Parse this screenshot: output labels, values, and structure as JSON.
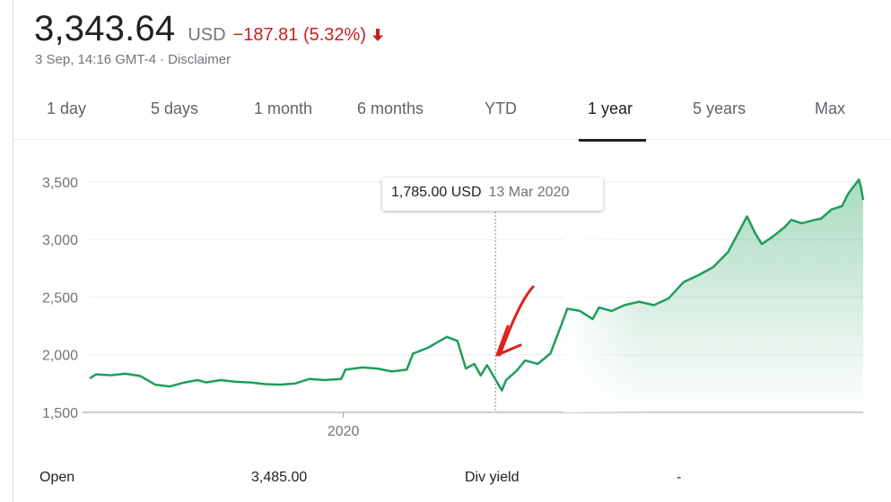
{
  "quote": {
    "price": "3,343.64",
    "currency": "USD",
    "change": "−187.81 (5.32%)",
    "timestamp": "3 Sep, 14:16 GMT-4",
    "separator": "·",
    "disclaimer": "Disclaimer",
    "change_color": "#c5221f"
  },
  "tabs": [
    {
      "label": "1 day",
      "active": false
    },
    {
      "label": "5 days",
      "active": false
    },
    {
      "label": "1 month",
      "active": false
    },
    {
      "label": "6 months",
      "active": false
    },
    {
      "label": "YTD",
      "active": false
    },
    {
      "label": "1 year",
      "active": true
    },
    {
      "label": "5 years",
      "active": false
    },
    {
      "label": "Max",
      "active": false
    }
  ],
  "tooltip": {
    "value": "1,785.00 USD",
    "date": "13 Mar 2020"
  },
  "stats": {
    "open_label": "Open",
    "open_value": "3,485.00",
    "div_yield_label": "Div yield",
    "div_yield_value": "-"
  },
  "chart_data": {
    "type": "area",
    "title": "",
    "xlabel": "",
    "ylabel": "",
    "line_color": "#1e9e5a",
    "annotation_color": "#e0201a",
    "ylim": [
      1500,
      3600
    ],
    "yticks": [
      {
        "label": "3,500",
        "value": 3500
      },
      {
        "label": "3,000",
        "value": 3000
      },
      {
        "label": "2,500",
        "value": 2500
      },
      {
        "label": "2,000",
        "value": 2000
      },
      {
        "label": "1,500",
        "value": 1500
      }
    ],
    "xlim": [
      "2019-09-03",
      "2020-09-03"
    ],
    "xticks": [
      {
        "label": "2020",
        "date": "2020-01-01"
      }
    ],
    "grid": true,
    "hover_date": "2020-03-13",
    "fill_start_date": "2020-04-14",
    "series": [
      {
        "x": [
          "2019-09-03",
          "2019-09-06",
          "2019-09-13",
          "2019-09-20",
          "2019-09-27",
          "2019-10-04",
          "2019-10-11",
          "2019-10-18",
          "2019-10-24",
          "2019-10-28",
          "2019-11-04",
          "2019-11-11",
          "2019-11-18",
          "2019-11-25",
          "2019-12-02",
          "2019-12-09",
          "2019-12-16",
          "2019-12-23",
          "2019-12-31",
          "2020-01-02",
          "2020-01-10",
          "2020-01-17",
          "2020-01-24",
          "2020-01-31",
          "2020-02-03",
          "2020-02-10",
          "2020-02-19",
          "2020-02-24",
          "2020-02-28",
          "2020-03-03",
          "2020-03-06",
          "2020-03-09",
          "2020-03-13",
          "2020-03-16",
          "2020-03-18",
          "2020-03-23",
          "2020-03-27",
          "2020-04-02",
          "2020-04-08",
          "2020-04-14",
          "2020-04-16",
          "2020-04-22",
          "2020-04-28",
          "2020-05-01",
          "2020-05-07",
          "2020-05-13",
          "2020-05-20",
          "2020-05-27",
          "2020-06-03",
          "2020-06-10",
          "2020-06-17",
          "2020-06-24",
          "2020-07-01",
          "2020-07-06",
          "2020-07-10",
          "2020-07-14",
          "2020-07-17",
          "2020-07-21",
          "2020-07-24",
          "2020-07-28",
          "2020-07-31",
          "2020-08-05",
          "2020-08-11",
          "2020-08-14",
          "2020-08-19",
          "2020-08-24",
          "2020-08-27",
          "2020-09-01",
          "2020-09-02",
          "2020-09-03"
        ],
        "values": [
          1795,
          1830,
          1822,
          1835,
          1815,
          1740,
          1725,
          1760,
          1780,
          1760,
          1780,
          1765,
          1760,
          1745,
          1740,
          1750,
          1790,
          1780,
          1790,
          1870,
          1890,
          1880,
          1855,
          1870,
          2010,
          2060,
          2155,
          2120,
          1880,
          1920,
          1820,
          1910,
          1785,
          1690,
          1780,
          1860,
          1950,
          1920,
          2010,
          2300,
          2400,
          2380,
          2310,
          2410,
          2380,
          2430,
          2460,
          2430,
          2490,
          2630,
          2690,
          2760,
          2890,
          3060,
          3200,
          3050,
          2960,
          3010,
          3050,
          3110,
          3170,
          3140,
          3170,
          3180,
          3260,
          3290,
          3400,
          3520,
          3450,
          3343.64
        ]
      }
    ]
  }
}
